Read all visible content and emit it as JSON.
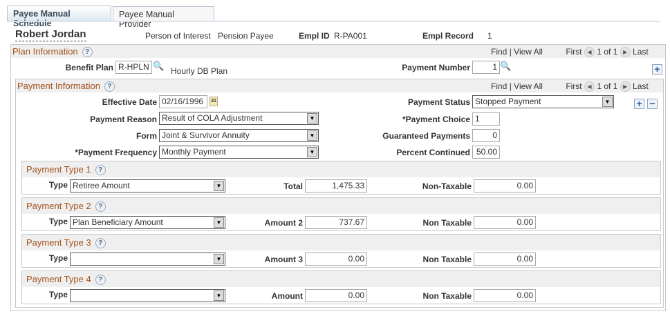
{
  "tabs": [
    {
      "label": "Payee Manual Schedule"
    },
    {
      "label": "Payee Manual Provider"
    }
  ],
  "header": {
    "name": "Robert Jordan",
    "person_type": "Person of Interest",
    "payee_type": "Pension Payee",
    "empl_id_label": "Empl ID",
    "empl_id": "R-PA001",
    "empl_record_label": "Empl Record",
    "empl_record": "1"
  },
  "nav": {
    "find": "Find",
    "view_all": "View All",
    "first": "First",
    "count": "1 of 1",
    "last": "Last",
    "sep": "|"
  },
  "plan": {
    "title": "Plan Information",
    "benefit_plan_label": "Benefit Plan",
    "benefit_plan": "R-HPLN",
    "benefit_plan_desc": "Hourly DB Plan",
    "payment_number_label": "Payment Number",
    "payment_number": "1"
  },
  "payment": {
    "title": "Payment Information",
    "effective_date_label": "Effective Date",
    "effective_date": "02/16/1996",
    "payment_status_label": "Payment Status",
    "payment_status": "Stopped Payment",
    "payment_reason_label": "Payment Reason",
    "payment_reason": "Result of COLA Adjustment",
    "payment_choice_label": "*Payment Choice",
    "payment_choice": "1",
    "form_label": "Form",
    "form": "Joint & Survivor Annuity",
    "guaranteed_label": "Guaranteed Payments",
    "guaranteed": "0",
    "frequency_label": "*Payment Frequency",
    "frequency": "Monthly Payment",
    "percent_label": "Percent Continued",
    "percent": "50.00"
  },
  "payment_types": [
    {
      "title": "Payment Type 1",
      "type_label": "Type",
      "type": "Retiree Amount",
      "amount_label": "Total",
      "amount": "1,475.33",
      "nontax_label": "Non-Taxable",
      "nontax": "0.00"
    },
    {
      "title": "Payment Type 2",
      "type_label": "Type",
      "type": "Plan Beneficiary Amount",
      "amount_label": "Amount 2",
      "amount": "737.67",
      "nontax_label": "Non Taxable",
      "nontax": "0.00"
    },
    {
      "title": "Payment Type 3",
      "type_label": "Type",
      "type": "",
      "amount_label": "Amount 3",
      "amount": "0.00",
      "nontax_label": "Non Taxable",
      "nontax": "0.00"
    },
    {
      "title": "Payment Type 4",
      "type_label": "Type",
      "type": "",
      "amount_label": "Amount",
      "amount": "0.00",
      "nontax_label": "Non Taxable",
      "nontax": "0.00"
    }
  ]
}
